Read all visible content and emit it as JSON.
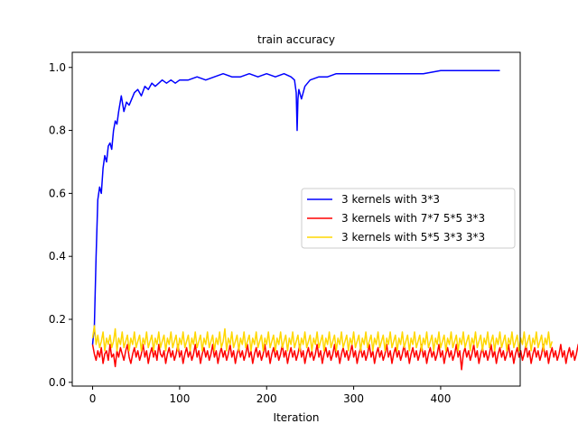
{
  "chart_data": {
    "type": "line",
    "title": "train accuracy",
    "xlabel": "Iteration",
    "ylabel": "",
    "xlim": [
      -23.4,
      491.4
    ],
    "ylim": [
      -0.012,
      1.048
    ],
    "xticks": [
      0,
      100,
      200,
      300,
      400
    ],
    "yticks": [
      0.0,
      0.2,
      0.4,
      0.6,
      0.8,
      1.0
    ],
    "xtick_labels": [
      "0",
      "100",
      "200",
      "300",
      "400"
    ],
    "ytick_labels": [
      "0.0",
      "0.2",
      "0.4",
      "0.6",
      "0.8",
      "1.0"
    ],
    "legend_position": "center-right",
    "series": [
      {
        "name": "3 kernels with 3*3",
        "color": "#0000ff",
        "x": [
          0,
          2,
          4,
          6,
          8,
          10,
          12,
          14,
          16,
          18,
          20,
          22,
          24,
          26,
          28,
          30,
          33,
          36,
          39,
          42,
          45,
          48,
          52,
          56,
          60,
          64,
          68,
          72,
          76,
          80,
          85,
          90,
          95,
          100,
          110,
          120,
          130,
          140,
          150,
          160,
          170,
          180,
          190,
          200,
          210,
          220,
          228,
          232,
          234,
          235,
          236,
          237,
          240,
          244,
          250,
          260,
          270,
          280,
          290,
          300,
          320,
          340,
          360,
          380,
          400,
          420,
          440,
          460,
          468
        ],
        "y": [
          0.12,
          0.18,
          0.4,
          0.58,
          0.62,
          0.6,
          0.68,
          0.72,
          0.7,
          0.75,
          0.76,
          0.74,
          0.8,
          0.83,
          0.82,
          0.86,
          0.91,
          0.86,
          0.89,
          0.88,
          0.9,
          0.92,
          0.93,
          0.91,
          0.94,
          0.93,
          0.95,
          0.94,
          0.95,
          0.96,
          0.95,
          0.96,
          0.95,
          0.96,
          0.96,
          0.97,
          0.96,
          0.97,
          0.98,
          0.97,
          0.97,
          0.98,
          0.97,
          0.98,
          0.97,
          0.98,
          0.97,
          0.96,
          0.92,
          0.8,
          0.9,
          0.93,
          0.9,
          0.94,
          0.96,
          0.97,
          0.97,
          0.98,
          0.98,
          0.98,
          0.98,
          0.98,
          0.98,
          0.98,
          0.99,
          0.99,
          0.99,
          0.99,
          0.99
        ]
      },
      {
        "name": "3 kernels with 7*7 5*5 3*3",
        "color": "#ff0000",
        "x_start": 0,
        "x_step": 2,
        "values": [
          0.12,
          0.09,
          0.07,
          0.1,
          0.08,
          0.11,
          0.06,
          0.09,
          0.1,
          0.07,
          0.12,
          0.08,
          0.09,
          0.05,
          0.1,
          0.08,
          0.11,
          0.09,
          0.07,
          0.1,
          0.12,
          0.08,
          0.06,
          0.09,
          0.11,
          0.08,
          0.1,
          0.07,
          0.09,
          0.12,
          0.08,
          0.1,
          0.06,
          0.09,
          0.11,
          0.08,
          0.1,
          0.07,
          0.12,
          0.09,
          0.08,
          0.1,
          0.06,
          0.09,
          0.11,
          0.08,
          0.1,
          0.07,
          0.09,
          0.12,
          0.08,
          0.1,
          0.06,
          0.09,
          0.11,
          0.08,
          0.1,
          0.07,
          0.09,
          0.12,
          0.08,
          0.1,
          0.06,
          0.09,
          0.11,
          0.08,
          0.1,
          0.07,
          0.09,
          0.12,
          0.08,
          0.1,
          0.06,
          0.09,
          0.11,
          0.08,
          0.1,
          0.07,
          0.09,
          0.12,
          0.08,
          0.1,
          0.06,
          0.09,
          0.11,
          0.08,
          0.1,
          0.07,
          0.09,
          0.12,
          0.08,
          0.1,
          0.06,
          0.09,
          0.11,
          0.08,
          0.1,
          0.07,
          0.09,
          0.12,
          0.08,
          0.1,
          0.06,
          0.09,
          0.11,
          0.08,
          0.1,
          0.07,
          0.09,
          0.12,
          0.08,
          0.1,
          0.06,
          0.09,
          0.11,
          0.08,
          0.1,
          0.07,
          0.09,
          0.12,
          0.08,
          0.1,
          0.06,
          0.09,
          0.11,
          0.08,
          0.1,
          0.07,
          0.09,
          0.12,
          0.08,
          0.1,
          0.06,
          0.09,
          0.11,
          0.08,
          0.1,
          0.07,
          0.09,
          0.12,
          0.08,
          0.1,
          0.06,
          0.09,
          0.11,
          0.08,
          0.1,
          0.07,
          0.09,
          0.12,
          0.08,
          0.1,
          0.06,
          0.09,
          0.11,
          0.08,
          0.1,
          0.07,
          0.09,
          0.12,
          0.08,
          0.1,
          0.06,
          0.09,
          0.11,
          0.08,
          0.1,
          0.07,
          0.09,
          0.12,
          0.08,
          0.1,
          0.06,
          0.09,
          0.11,
          0.08,
          0.1,
          0.07,
          0.09,
          0.12,
          0.08,
          0.1,
          0.06,
          0.09,
          0.11,
          0.08,
          0.1,
          0.07,
          0.09,
          0.12,
          0.08,
          0.1,
          0.06,
          0.09,
          0.11,
          0.08,
          0.1,
          0.07,
          0.09,
          0.12,
          0.08,
          0.1,
          0.06,
          0.09,
          0.11,
          0.08,
          0.1,
          0.07,
          0.09,
          0.12,
          0.08,
          0.1,
          0.04,
          0.09,
          0.11,
          0.08,
          0.1,
          0.07,
          0.09,
          0.12,
          0.08,
          0.1,
          0.06,
          0.09,
          0.11,
          0.08,
          0.1,
          0.07,
          0.09,
          0.12,
          0.08,
          0.1,
          0.06,
          0.09,
          0.11,
          0.08,
          0.1,
          0.07,
          0.09,
          0.12,
          0.08,
          0.1,
          0.06,
          0.09,
          0.11,
          0.08,
          0.1,
          0.07,
          0.09,
          0.12,
          0.08,
          0.1,
          0.06,
          0.09,
          0.11,
          0.08,
          0.1,
          0.07,
          0.09,
          0.12,
          0.08,
          0.1,
          0.06,
          0.09,
          0.11,
          0.08,
          0.1,
          0.07,
          0.09,
          0.12,
          0.08,
          0.1,
          0.06,
          0.09,
          0.11,
          0.08,
          0.1,
          0.07,
          0.09,
          0.12,
          0.08,
          0.1,
          0.06,
          0.09,
          0.11,
          0.08,
          0.1,
          0.07,
          0.09
        ]
      },
      {
        "name": "3 kernels with 5*5 3*3 3*3",
        "color": "#ffd700",
        "x_start": 0,
        "x_step": 2,
        "values": [
          0.14,
          0.18,
          0.12,
          0.15,
          0.11,
          0.13,
          0.16,
          0.1,
          0.14,
          0.12,
          0.15,
          0.11,
          0.13,
          0.17,
          0.1,
          0.14,
          0.12,
          0.16,
          0.11,
          0.13,
          0.15,
          0.1,
          0.14,
          0.12,
          0.16,
          0.11,
          0.13,
          0.15,
          0.1,
          0.14,
          0.12,
          0.16,
          0.11,
          0.13,
          0.15,
          0.1,
          0.14,
          0.12,
          0.16,
          0.11,
          0.13,
          0.15,
          0.1,
          0.14,
          0.12,
          0.16,
          0.11,
          0.13,
          0.15,
          0.1,
          0.14,
          0.12,
          0.16,
          0.11,
          0.13,
          0.15,
          0.1,
          0.14,
          0.12,
          0.16,
          0.11,
          0.13,
          0.15,
          0.1,
          0.14,
          0.12,
          0.16,
          0.11,
          0.13,
          0.15,
          0.1,
          0.14,
          0.12,
          0.16,
          0.11,
          0.13,
          0.17,
          0.1,
          0.14,
          0.12,
          0.16,
          0.11,
          0.13,
          0.15,
          0.1,
          0.14,
          0.12,
          0.16,
          0.11,
          0.13,
          0.15,
          0.1,
          0.14,
          0.12,
          0.16,
          0.11,
          0.13,
          0.15,
          0.1,
          0.14,
          0.12,
          0.16,
          0.11,
          0.13,
          0.15,
          0.1,
          0.14,
          0.12,
          0.16,
          0.11,
          0.13,
          0.15,
          0.1,
          0.14,
          0.12,
          0.16,
          0.11,
          0.13,
          0.15,
          0.1,
          0.14,
          0.12,
          0.16,
          0.11,
          0.13,
          0.15,
          0.1,
          0.14,
          0.12,
          0.16,
          0.11,
          0.13,
          0.15,
          0.1,
          0.14,
          0.12,
          0.16,
          0.11,
          0.13,
          0.15,
          0.1,
          0.14,
          0.12,
          0.16,
          0.11,
          0.13,
          0.15,
          0.1,
          0.14,
          0.12,
          0.16,
          0.11,
          0.13,
          0.15,
          0.1,
          0.14,
          0.12,
          0.16,
          0.11,
          0.13,
          0.15,
          0.1,
          0.14,
          0.12,
          0.16,
          0.11,
          0.13,
          0.15,
          0.1,
          0.14,
          0.12,
          0.16,
          0.11,
          0.13,
          0.15,
          0.1,
          0.14,
          0.12,
          0.16,
          0.11,
          0.13,
          0.15,
          0.1,
          0.14,
          0.12,
          0.16,
          0.11,
          0.13,
          0.15,
          0.1,
          0.14,
          0.12,
          0.16,
          0.11,
          0.13,
          0.15,
          0.1,
          0.14,
          0.12,
          0.16,
          0.11,
          0.13,
          0.15,
          0.1,
          0.14,
          0.12,
          0.16,
          0.11,
          0.13,
          0.15,
          0.1,
          0.14,
          0.12,
          0.16,
          0.11,
          0.13,
          0.15,
          0.1,
          0.14,
          0.12,
          0.16,
          0.11,
          0.13,
          0.15,
          0.1,
          0.14,
          0.12,
          0.16,
          0.11,
          0.13,
          0.15,
          0.1,
          0.14,
          0.12,
          0.16,
          0.11,
          0.13,
          0.15,
          0.1,
          0.14,
          0.12,
          0.16,
          0.11,
          0.13,
          0.15,
          0.1,
          0.14,
          0.12,
          0.16,
          0.11,
          0.13,
          0.15,
          0.1,
          0.14,
          0.12,
          0.16,
          0.11,
          0.13,
          0.15,
          0.1,
          0.14,
          0.12,
          0.16,
          0.11,
          0.13
        ]
      }
    ]
  }
}
